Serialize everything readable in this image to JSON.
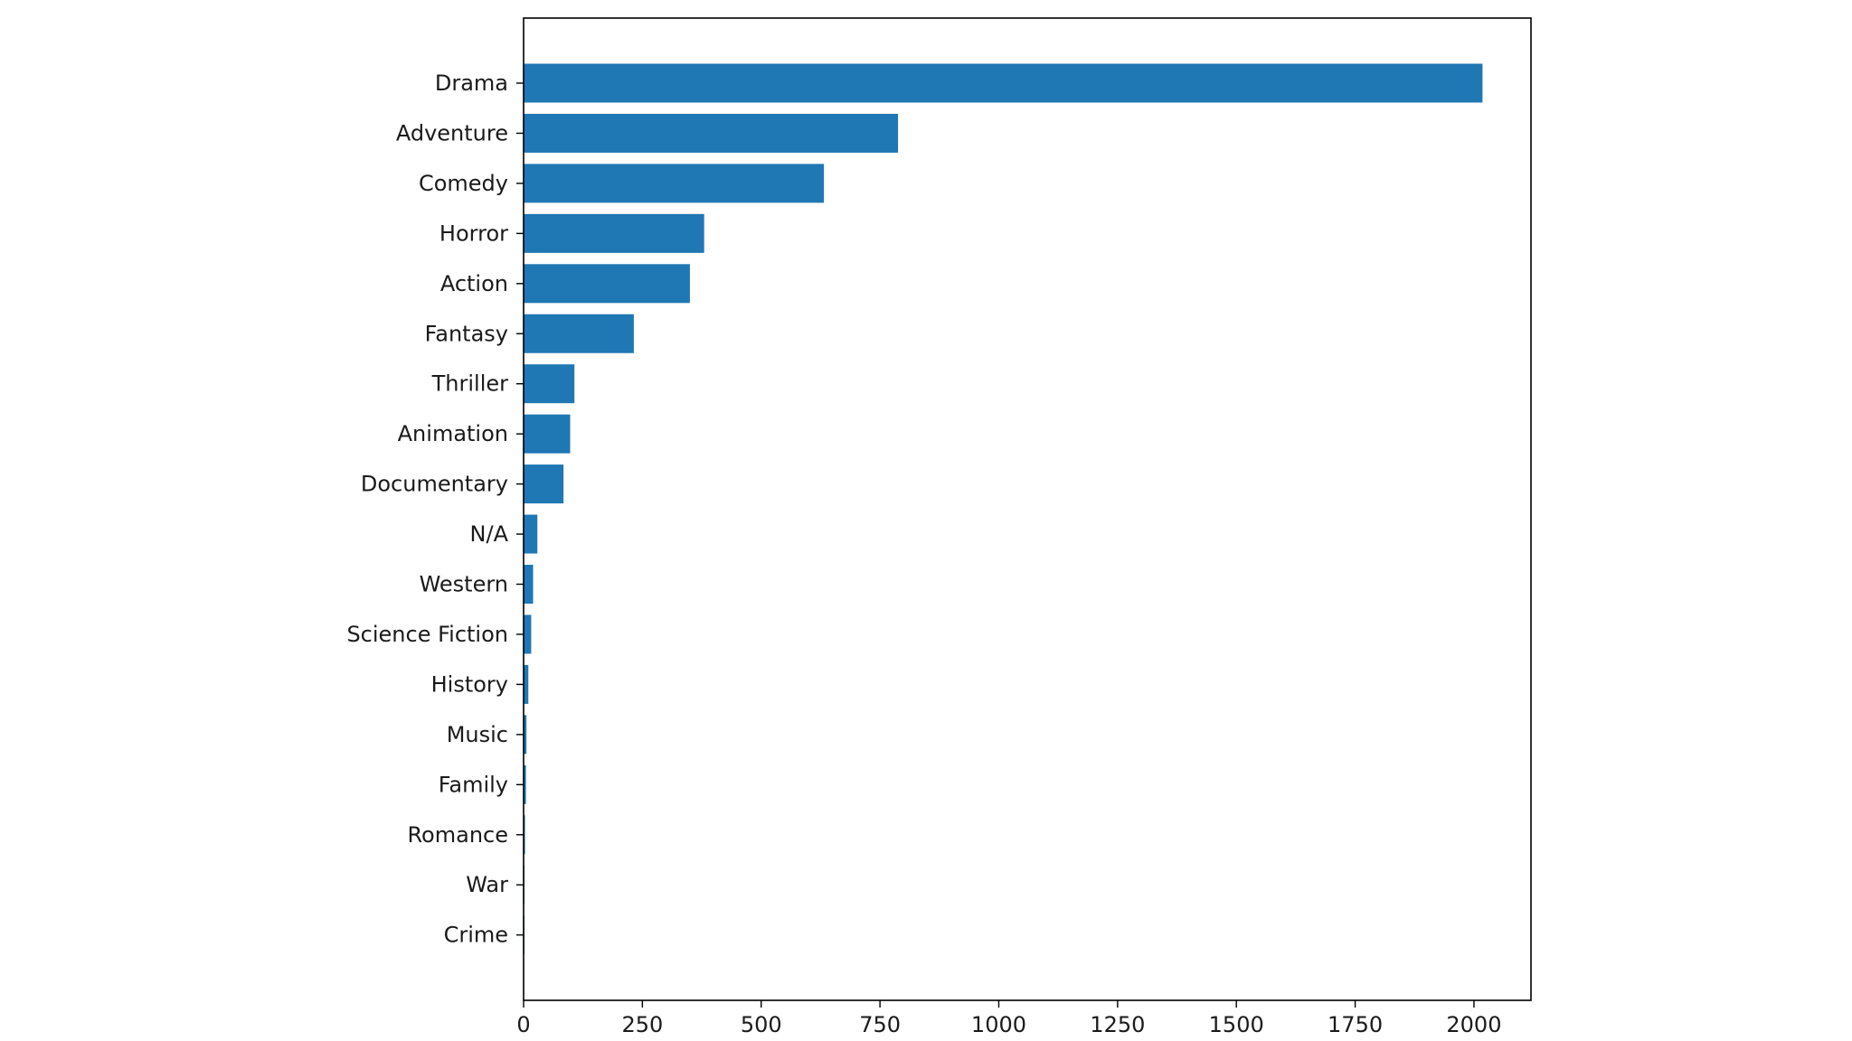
{
  "chart_data": {
    "type": "bar",
    "orientation": "horizontal",
    "title": "",
    "xlabel": "",
    "ylabel": "",
    "categories": [
      "Drama",
      "Adventure",
      "Comedy",
      "Horror",
      "Action",
      "Fantasy",
      "Thriller",
      "Animation",
      "Documentary",
      "N/A",
      "Western",
      "Science Fiction",
      "History",
      "Music",
      "Family",
      "Romance",
      "War",
      "Crime"
    ],
    "values": [
      2018,
      788,
      632,
      380,
      350,
      232,
      107,
      98,
      84,
      29,
      20,
      16,
      10,
      6,
      5,
      3,
      1,
      1
    ],
    "xlim": [
      0,
      2120
    ],
    "xticks": [
      0,
      250,
      500,
      750,
      1000,
      1250,
      1500,
      1750,
      2000
    ],
    "bar_color": "#1f77b4",
    "grid": false,
    "legend": "none"
  }
}
